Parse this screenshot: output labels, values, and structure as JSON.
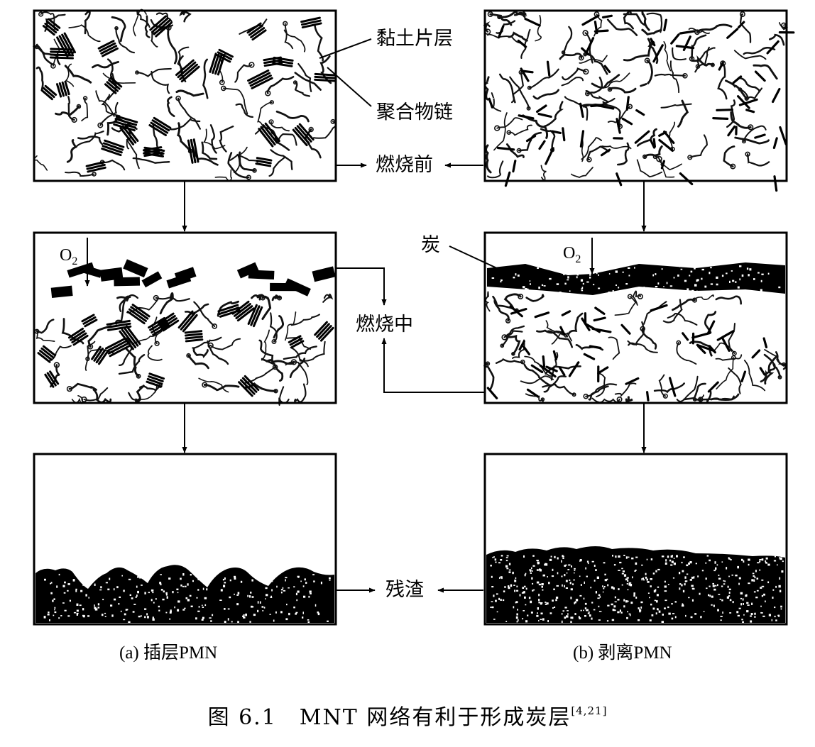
{
  "labels": {
    "clay_layers": "黏土片层",
    "polymer_chains": "聚合物链",
    "before_burning": "燃烧前",
    "during_burning": "燃烧中",
    "char": "炭",
    "residue": "残渣",
    "oxygen": "O",
    "oxygen_sub": "2"
  },
  "captions": {
    "left": "(a) 插层PMN",
    "right": "(b) 剥离PMN",
    "figure": "图 6.1　MNT 网络有利于形成炭层",
    "figure_ref": "[4,21]"
  }
}
